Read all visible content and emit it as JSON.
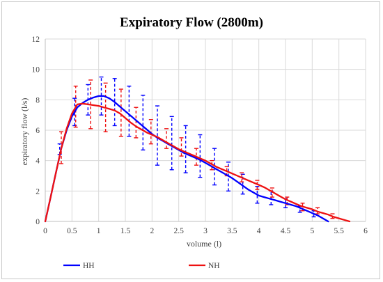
{
  "chart_data": {
    "type": "line",
    "title": "Expiratory Flow (2800m)",
    "xlabel": "volume (l)",
    "ylabel": "expiratory flow (l/s)",
    "xlim": [
      0,
      6
    ],
    "ylim": [
      0,
      12
    ],
    "xticks": [
      0,
      0.5,
      1,
      1.5,
      2,
      2.5,
      3,
      3.5,
      4,
      4.5,
      5,
      5.5,
      6
    ],
    "xtick_labels": [
      "0",
      "0.5",
      "1",
      "1.5",
      "2",
      "2.5",
      "3",
      "3.5",
      "4",
      "4.5",
      "5",
      "5.5",
      "6"
    ],
    "yticks": [
      0,
      2,
      4,
      6,
      8,
      10,
      12
    ],
    "ytick_labels": [
      "0",
      "2",
      "4",
      "6",
      "8",
      "10",
      "12"
    ],
    "grid": true,
    "legend_position": "bottom",
    "series": [
      {
        "name": "HH",
        "color": "#0000ff",
        "x": [
          0,
          0.1,
          0.2,
          0.3,
          0.4,
          0.5,
          0.55,
          0.6,
          0.7,
          0.8,
          0.9,
          1.0,
          1.1,
          1.2,
          1.3,
          1.4,
          1.5,
          1.6,
          1.7,
          1.8,
          1.9,
          2.0,
          2.1,
          2.2,
          2.3,
          2.4,
          2.5,
          2.6,
          2.7,
          2.8,
          2.9,
          3.0,
          3.1,
          3.2,
          3.3,
          3.4,
          3.5,
          3.6,
          3.7,
          3.8,
          3.9,
          4.0,
          4.1,
          4.2,
          4.3,
          4.4,
          4.5,
          4.6,
          4.7,
          4.8,
          4.9,
          5.0,
          5.1,
          5.2,
          5.3
        ],
        "y": [
          0,
          1.6,
          3.2,
          4.8,
          6.0,
          6.9,
          7.2,
          7.5,
          7.8,
          8.0,
          8.15,
          8.25,
          8.25,
          8.1,
          7.85,
          7.55,
          7.25,
          6.95,
          6.65,
          6.35,
          6.05,
          5.75,
          5.5,
          5.3,
          5.1,
          4.9,
          4.7,
          4.5,
          4.35,
          4.2,
          4.05,
          3.85,
          3.65,
          3.45,
          3.25,
          3.05,
          2.85,
          2.6,
          2.35,
          2.1,
          1.9,
          1.7,
          1.6,
          1.5,
          1.4,
          1.3,
          1.2,
          1.1,
          1.0,
          0.85,
          0.7,
          0.55,
          0.4,
          0.2,
          0.0
        ]
      },
      {
        "name": "NH",
        "color": "#ee1111",
        "x": [
          0,
          0.1,
          0.2,
          0.3,
          0.4,
          0.5,
          0.6,
          0.7,
          0.8,
          0.9,
          1.0,
          1.1,
          1.2,
          1.3,
          1.4,
          1.5,
          1.6,
          1.7,
          1.8,
          1.9,
          2.0,
          2.1,
          2.2,
          2.3,
          2.4,
          2.5,
          2.6,
          2.7,
          2.8,
          2.9,
          3.0,
          3.1,
          3.2,
          3.3,
          3.4,
          3.5,
          3.6,
          3.7,
          3.8,
          3.9,
          4.0,
          4.1,
          4.2,
          4.3,
          4.4,
          4.5,
          4.6,
          4.7,
          4.8,
          4.9,
          5.0,
          5.1,
          5.2,
          5.3,
          5.4,
          5.5,
          5.6,
          5.7
        ],
        "y": [
          0,
          1.6,
          3.2,
          4.8,
          6.1,
          7.1,
          7.7,
          7.75,
          7.7,
          7.65,
          7.6,
          7.5,
          7.4,
          7.3,
          7.1,
          6.8,
          6.5,
          6.25,
          6.05,
          5.85,
          5.7,
          5.55,
          5.35,
          5.15,
          4.95,
          4.75,
          4.6,
          4.45,
          4.3,
          4.15,
          4.0,
          3.8,
          3.6,
          3.45,
          3.3,
          3.15,
          3.0,
          2.85,
          2.7,
          2.55,
          2.4,
          2.25,
          2.05,
          1.85,
          1.65,
          1.45,
          1.3,
          1.15,
          1.0,
          0.9,
          0.8,
          0.65,
          0.55,
          0.45,
          0.3,
          0.2,
          0.1,
          0.0
        ]
      }
    ],
    "error_bars": [
      {
        "series": "HH",
        "points": [
          {
            "x": 0.27,
            "low": 4.4,
            "high": 5.1
          },
          {
            "x": 0.55,
            "low": 6.3,
            "high": 8.1
          },
          {
            "x": 0.8,
            "low": 7.0,
            "high": 9.0
          },
          {
            "x": 1.05,
            "low": 7.0,
            "high": 9.5
          },
          {
            "x": 1.3,
            "low": 6.3,
            "high": 9.4
          },
          {
            "x": 1.57,
            "low": 5.6,
            "high": 8.9
          },
          {
            "x": 1.83,
            "low": 4.7,
            "high": 8.3
          },
          {
            "x": 2.1,
            "low": 3.7,
            "high": 7.6
          },
          {
            "x": 2.37,
            "low": 3.4,
            "high": 6.9
          },
          {
            "x": 2.63,
            "low": 3.2,
            "high": 6.3
          },
          {
            "x": 2.9,
            "low": 2.9,
            "high": 5.7
          },
          {
            "x": 3.17,
            "low": 2.4,
            "high": 4.8
          },
          {
            "x": 3.43,
            "low": 2.0,
            "high": 3.9
          },
          {
            "x": 3.7,
            "low": 1.8,
            "high": 3.1
          },
          {
            "x": 3.97,
            "low": 1.2,
            "high": 2.3
          },
          {
            "x": 4.23,
            "low": 1.1,
            "high": 2.0
          },
          {
            "x": 4.5,
            "low": 0.9,
            "high": 1.5
          },
          {
            "x": 4.77,
            "low": 0.6,
            "high": 1.0
          },
          {
            "x": 5.03,
            "low": 0.3,
            "high": 0.7
          }
        ]
      },
      {
        "series": "NH",
        "points": [
          {
            "x": 0.3,
            "low": 3.8,
            "high": 5.9
          },
          {
            "x": 0.57,
            "low": 6.2,
            "high": 8.9
          },
          {
            "x": 0.85,
            "low": 6.1,
            "high": 9.3
          },
          {
            "x": 1.13,
            "low": 5.9,
            "high": 9.1
          },
          {
            "x": 1.42,
            "low": 5.6,
            "high": 8.7
          },
          {
            "x": 1.7,
            "low": 5.5,
            "high": 7.5
          },
          {
            "x": 1.98,
            "low": 5.1,
            "high": 6.7
          },
          {
            "x": 2.27,
            "low": 4.8,
            "high": 6.1
          },
          {
            "x": 2.55,
            "low": 4.3,
            "high": 5.5
          },
          {
            "x": 2.83,
            "low": 3.7,
            "high": 4.8
          },
          {
            "x": 3.12,
            "low": 3.4,
            "high": 4.0
          },
          {
            "x": 3.4,
            "low": 3.0,
            "high": 3.6
          },
          {
            "x": 3.68,
            "low": 2.6,
            "high": 3.2
          },
          {
            "x": 3.97,
            "low": 2.1,
            "high": 2.7
          },
          {
            "x": 4.25,
            "low": 1.6,
            "high": 2.2
          },
          {
            "x": 4.53,
            "low": 1.1,
            "high": 1.6
          },
          {
            "x": 4.82,
            "low": 0.7,
            "high": 1.2
          },
          {
            "x": 5.1,
            "low": 0.5,
            "high": 0.9
          },
          {
            "x": 5.38,
            "low": 0.2,
            "high": 0.5
          }
        ]
      }
    ]
  }
}
